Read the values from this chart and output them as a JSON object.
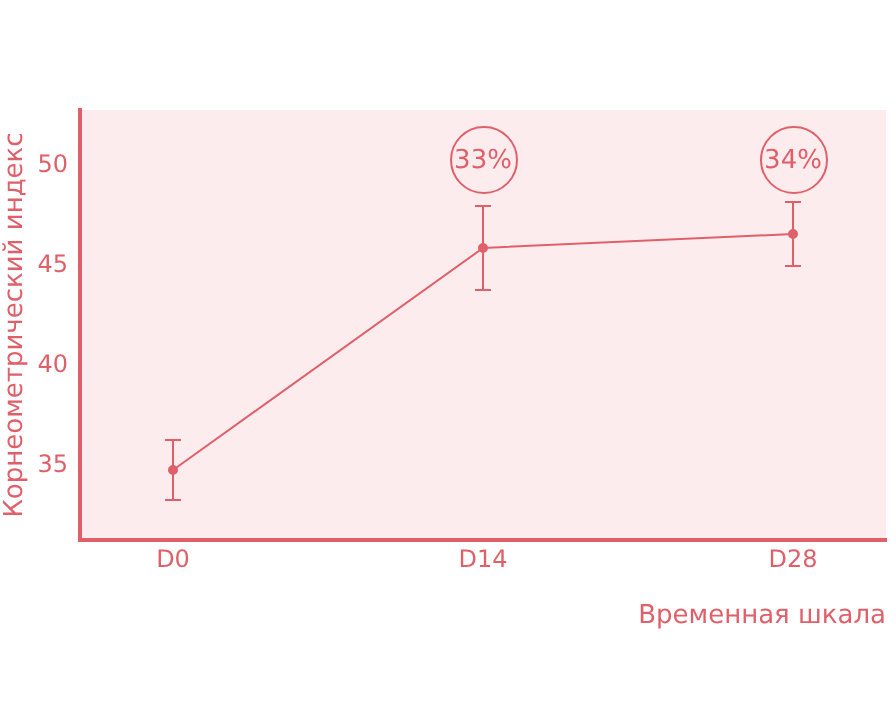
{
  "chart_data": {
    "type": "line",
    "ylabel": "Корнеометрический индекс",
    "xlabel": "Временная шкала",
    "categories": [
      "D0",
      "D14",
      "D28"
    ],
    "series": [
      {
        "color": "#e0606a",
        "values": [
          34.8,
          45.9,
          46.6
        ],
        "errors": [
          1.5,
          2.1,
          1.6
        ]
      }
    ],
    "ylim": [
      31.3,
      52.8
    ],
    "yticks": [
      35,
      40,
      45,
      50
    ],
    "grid": false,
    "legend": false,
    "marker": "circle",
    "line_style": "solid",
    "annotations": [
      {
        "text": "33%",
        "x": "D14",
        "y": 50.3
      },
      {
        "text": "34%",
        "x": "D28",
        "y": 50.3
      }
    ]
  }
}
